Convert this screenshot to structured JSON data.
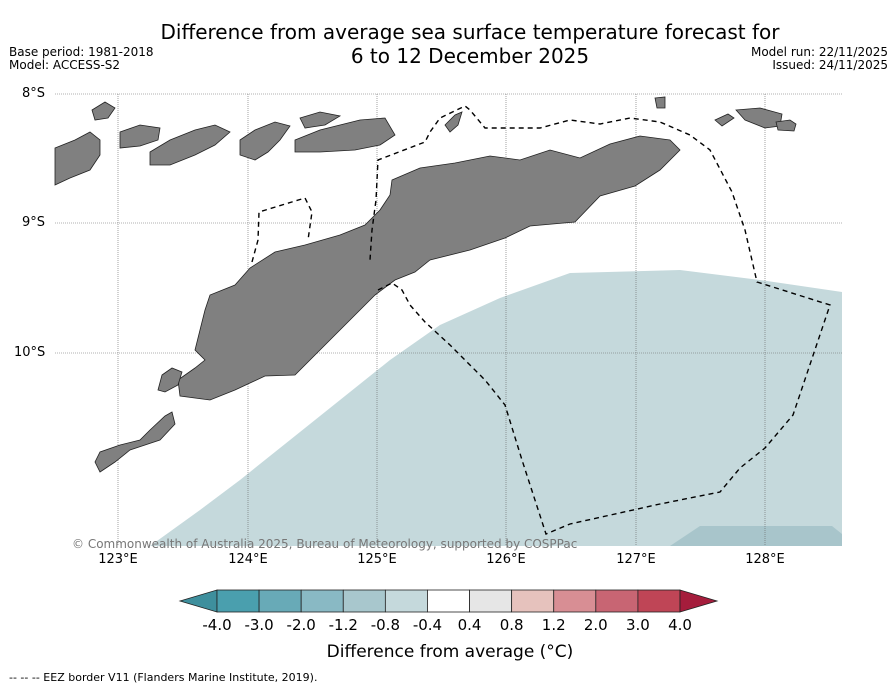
{
  "title": {
    "line1": "Difference from average sea surface temperature forecast for",
    "line2": "6 to 12 December 2025"
  },
  "meta": {
    "base_period": "Base period: 1981-2018",
    "model": "Model: ACCESS-S2",
    "model_run": "Model run: 22/11/2025",
    "issued": "Issued: 24/11/2025"
  },
  "axes": {
    "lat_labels": [
      "8°S",
      "9°S",
      "10°S"
    ],
    "lon_labels": [
      "123°E",
      "124°E",
      "125°E",
      "126°E",
      "127°E",
      "128°E"
    ]
  },
  "copyright": "© Commonwealth of Australia 2025, Bureau of Meteorology, supported by COSPPac",
  "colorbar": {
    "labels": [
      "-4.0",
      "-3.0",
      "-2.0",
      "-1.2",
      "-0.8",
      "-0.4",
      "0.4",
      "0.8",
      "1.2",
      "2.0",
      "3.0",
      "4.0"
    ],
    "title": "Difference from average (°C)",
    "colors": [
      "#3e8f9d",
      "#4a9fae",
      "#68aab7",
      "#89b9c4",
      "#a8c7cd",
      "#c5d9dc",
      "#ffffff",
      "#e6e6e6",
      "#e6c2bd",
      "#d88e94",
      "#c86573",
      "#bf4556",
      "#a51d3c"
    ]
  },
  "legend_note": "--  --  -- EEZ border V11 (Flanders Marine Institute, 2019).",
  "land_color": "#808080",
  "anomaly_color": "#c5d9dc"
}
